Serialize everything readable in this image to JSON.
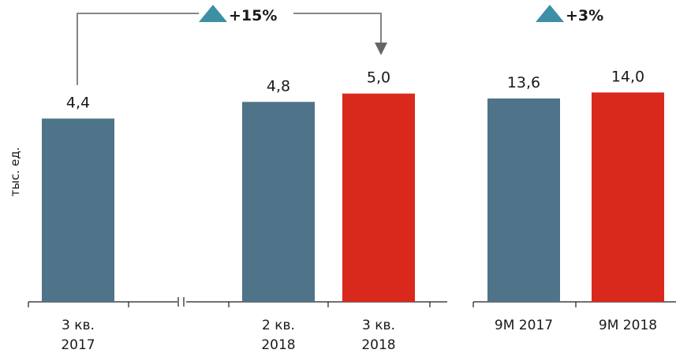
{
  "chart_data": [
    {
      "type": "bar",
      "ylabel": "тыс. ед.",
      "ylim": [
        0,
        5.6
      ],
      "categories": [
        [
          "3 кв.",
          "2017"
        ],
        [
          "2 кв.",
          "2018"
        ],
        [
          "3 кв.",
          "2018"
        ]
      ],
      "values": [
        4.4,
        4.8,
        5.0
      ],
      "value_labels": [
        "4,4",
        "4,8",
        "5,0"
      ],
      "bar_colors": [
        "#4f7389",
        "#4f7389",
        "#d9291c"
      ],
      "axis_break": true,
      "annotation": {
        "text": "+15%",
        "from": 0,
        "to": 2,
        "marker": "up-triangle",
        "marker_color": "#3d8fa5"
      }
    },
    {
      "type": "bar",
      "ylim": [
        0,
        15.6
      ],
      "categories": [
        [
          "9M 2017"
        ],
        [
          "9M 2018"
        ]
      ],
      "values": [
        13.6,
        14.0
      ],
      "value_labels": [
        "13,6",
        "14,0"
      ],
      "bar_colors": [
        "#4f7389",
        "#d9291c"
      ],
      "annotation": {
        "text": "+3%",
        "marker": "up-triangle",
        "marker_color": "#3d8fa5"
      }
    }
  ]
}
